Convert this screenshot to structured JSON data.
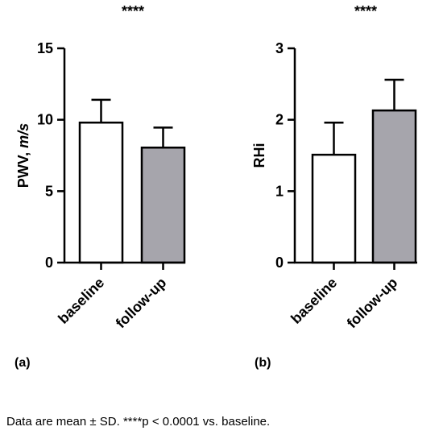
{
  "caption": "Data are mean ± SD. ****p < 0.0001 vs. baseline.",
  "chart_data": [
    {
      "panel_label": "(a)",
      "type": "bar",
      "categories": [
        "baseline",
        "follow-up"
      ],
      "values": [
        9.8,
        8.05
      ],
      "errors": [
        1.6,
        1.4
      ],
      "ylabel_main": "PWV, ",
      "ylabel_unit": "m/s",
      "ylim": [
        0,
        15
      ],
      "yticks": [
        "0",
        "5",
        "10",
        "15"
      ],
      "significance": "****",
      "bar_colors": [
        "#ffffff",
        "#a6a5ac"
      ],
      "grid": false
    },
    {
      "panel_label": "(b)",
      "type": "bar",
      "categories": [
        "baseline",
        "follow-up"
      ],
      "values": [
        1.51,
        2.13
      ],
      "errors": [
        0.45,
        0.43
      ],
      "ylabel_main": "RHi",
      "ylabel_unit": "",
      "ylim": [
        0,
        3
      ],
      "yticks": [
        "0",
        "1",
        "2",
        "3"
      ],
      "significance": "****",
      "bar_colors": [
        "#ffffff",
        "#a6a5ac"
      ],
      "grid": false
    }
  ]
}
